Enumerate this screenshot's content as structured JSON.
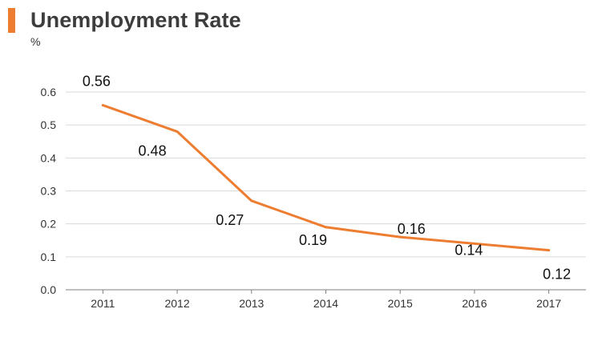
{
  "title": "Unemployment Rate",
  "unit": "%",
  "colors": {
    "accent": "#ED7D31",
    "line": "#ED7D31",
    "grid": "#D9D9D9",
    "axis": "#7F7F7F"
  },
  "chart_data": {
    "type": "line",
    "title": "Unemployment Rate",
    "ylabel": "%",
    "xlabel": "",
    "categories": [
      "2011",
      "2012",
      "2013",
      "2014",
      "2015",
      "2016",
      "2017"
    ],
    "series": [
      {
        "values": [
          0.56,
          0.48,
          0.27,
          0.19,
          0.16,
          0.14,
          0.12
        ]
      }
    ],
    "data_labels": [
      "0.56",
      "0.48",
      "0.27",
      "0.19",
      "0.16",
      "0.14",
      "0.12"
    ],
    "ylim": [
      0,
      0.6
    ],
    "yticks": [
      "0.0",
      "0.1",
      "0.2",
      "0.3",
      "0.4",
      "0.5",
      "0.6"
    ],
    "grid": true,
    "legend": "none"
  }
}
